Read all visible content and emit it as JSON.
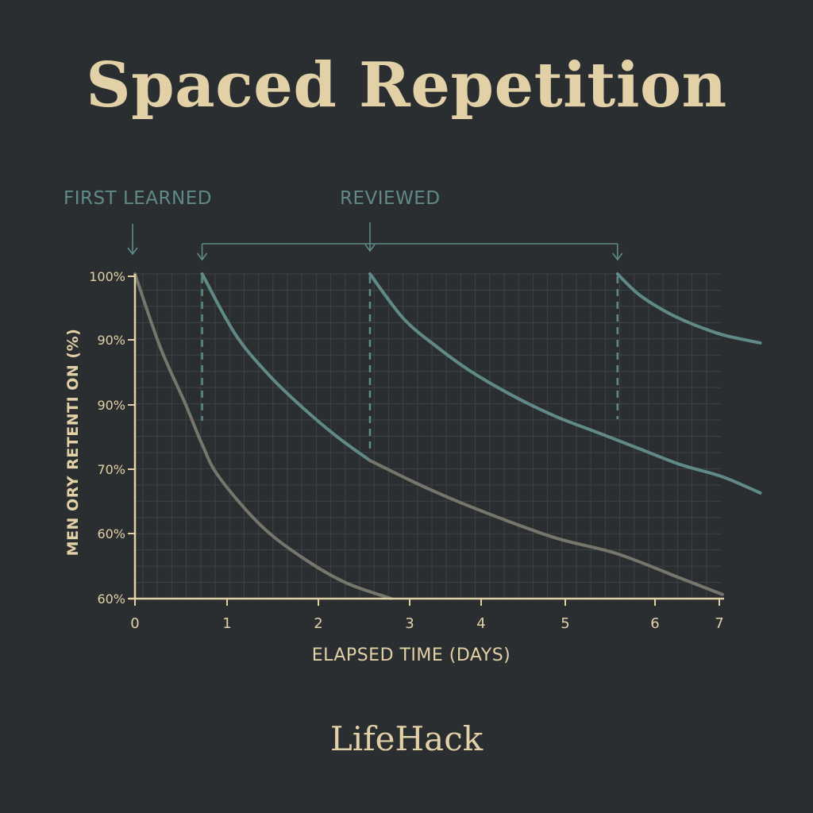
{
  "title": "Spaced Repetition",
  "brand": "LifeHack",
  "annotations": {
    "first_learned": "FIRST LEARNED",
    "reviewed": "REVIEWED"
  },
  "colors": {
    "background": "#2b2e31",
    "accent": "#e2d1a6",
    "review": "#5f8a87",
    "decay": "#76766c",
    "grid": "#3c4245"
  },
  "chart_data": {
    "type": "line",
    "xlabel": "ELAPSED TIME (DAYS)",
    "ylabel": "MEN ORY RETENTI ON (%)",
    "xlim": [
      0,
      7
    ],
    "x_ticks": [
      "0",
      "1",
      "2",
      "3",
      "4",
      "5",
      "6",
      "7"
    ],
    "y_ticks": [
      "100%",
      "90%",
      "90%",
      "70%",
      "60%",
      "60%"
    ],
    "grid": true,
    "first_learned_day": 0,
    "review_days": [
      0.8,
      2.8,
      5.75
    ],
    "series": [
      {
        "x": [
          0,
          0.3,
          0.6,
          0.8,
          1,
          1.5,
          2,
          2.5,
          3.05
        ],
        "y": [
          100,
          91,
          84,
          79,
          75,
          69,
          65,
          62,
          60
        ]
      },
      {
        "x": [
          0.8,
          1.2,
          1.6,
          2.0,
          2.4,
          2.8,
          3.5,
          4.2,
          5.0,
          5.75,
          6.5,
          7.0
        ],
        "y": [
          100,
          92.5,
          87.5,
          83.5,
          80,
          77,
          73.5,
          70.5,
          67.5,
          65.5,
          62.5,
          60.5
        ]
      },
      {
        "x": [
          2.8,
          3.2,
          3.6,
          4.0,
          4.5,
          5.0,
          5.5,
          6.0,
          6.5,
          7.0,
          7.45
        ],
        "y": [
          100,
          94.5,
          91,
          88,
          85,
          82.5,
          80.5,
          78.5,
          76.5,
          75,
          73
        ]
      },
      {
        "x": [
          5.75,
          6.0,
          6.3,
          6.6,
          7.0,
          7.45
        ],
        "y": [
          100,
          97.5,
          95.5,
          94,
          92.5,
          91.5
        ]
      }
    ]
  }
}
